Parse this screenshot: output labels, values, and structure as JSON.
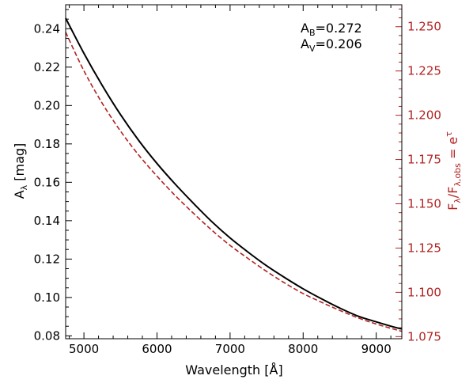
{
  "chart_data": {
    "type": "line",
    "xlabel": "Wavelength [Å]",
    "ylabel_left": "A",
    "ylabel_left_sub": "λ",
    "ylabel_left_unit": " [mag]",
    "ylabel_right": "F",
    "ylabel_right_sub1": "λ",
    "ylabel_right_mid": "/F",
    "ylabel_right_sub2": "λ,obs",
    "ylabel_right_eq": " = e",
    "ylabel_right_sup": "τ",
    "xlim": [
      4750,
      9350
    ],
    "ylim_left": [
      0.0785,
      0.2525
    ],
    "ylim_right": [
      1.0738,
      1.2624
    ],
    "x_ticks": [
      5000,
      6000,
      7000,
      8000,
      9000
    ],
    "y_left_ticks": [
      "0.08",
      "0.10",
      "0.12",
      "0.14",
      "0.16",
      "0.18",
      "0.20",
      "0.22",
      "0.24"
    ],
    "y_right_ticks": [
      "1.075",
      "1.100",
      "1.125",
      "1.150",
      "1.175",
      "1.200",
      "1.225",
      "1.250"
    ],
    "grid": false,
    "colors": {
      "left": "#000000",
      "right": "#b22222"
    },
    "annotations": [
      {
        "main": "A",
        "sub": "B",
        "value": "=0.272"
      },
      {
        "main": "A",
        "sub": "V",
        "value": "=0.206"
      }
    ],
    "series": [
      {
        "axis": "left",
        "style": "solid",
        "x": [
          4750,
          5000,
          5250,
          5500,
          5750,
          6000,
          6250,
          6500,
          6750,
          7000,
          7250,
          7500,
          7750,
          8000,
          8250,
          8500,
          8750,
          9000,
          9250,
          9350
        ],
        "y": [
          0.2455,
          0.2272,
          0.2105,
          0.1953,
          0.1818,
          0.1698,
          0.159,
          0.149,
          0.1395,
          0.131,
          0.1235,
          0.1165,
          0.1103,
          0.1045,
          0.0993,
          0.0945,
          0.0903,
          0.0873,
          0.0845,
          0.0836
        ]
      },
      {
        "axis": "right",
        "style": "dashed",
        "x": [
          4750,
          5000,
          5250,
          5500,
          5750,
          6000,
          6250,
          6500,
          6750,
          7000,
          7250,
          7500,
          7750,
          8000,
          8250,
          8500,
          8750,
          9000,
          9250,
          9350
        ],
        "y": [
          1.2469,
          1.2251,
          1.2068,
          1.1911,
          1.1775,
          1.1656,
          1.1546,
          1.1446,
          1.1351,
          1.1265,
          1.119,
          1.1118,
          1.1052,
          1.0993,
          1.0944,
          1.0898,
          1.0856,
          1.0821,
          1.0791,
          1.078
        ]
      }
    ]
  }
}
